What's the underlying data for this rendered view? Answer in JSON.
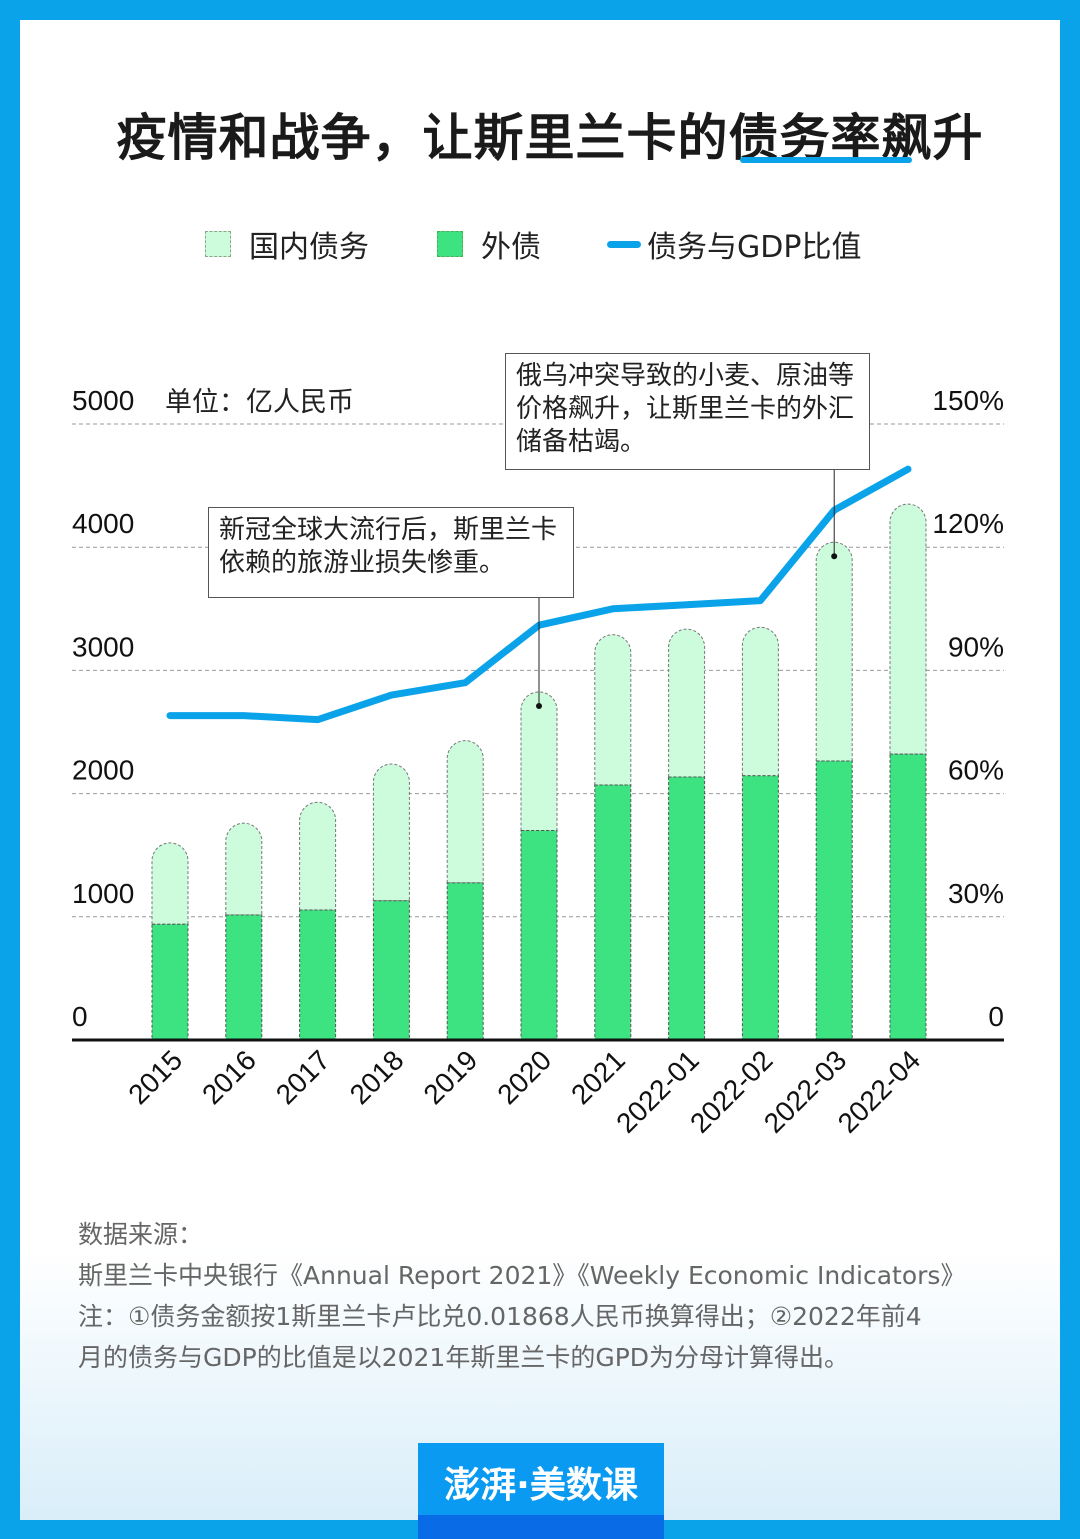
{
  "title": "疫情和战争，让斯里兰卡的债务率飙升",
  "legend": [
    {
      "label": "国内债务",
      "color": "#ccfcdc"
    },
    {
      "label": "外债",
      "color": "#3de381"
    },
    {
      "label": "债务与GDP比值",
      "color": "#0aa3ea"
    }
  ],
  "unit": "单位：亿人民币",
  "annotations": [
    "新冠全球大流行后，斯里兰卡依赖的旅游业损失惨重。",
    "俄乌冲突导致的小麦、原油等价格飙升，让斯里兰卡的外汇储备枯竭。"
  ],
  "chart_data": {
    "type": "bar",
    "stacked": true,
    "categories": [
      "2015",
      "2016",
      "2017",
      "2018",
      "2019",
      "2020",
      "2021",
      "2022-01",
      "2022-02",
      "2022-03",
      "2022-04"
    ],
    "series": [
      {
        "name": "外债",
        "type": "bar",
        "axis": "left",
        "values": [
          940,
          1015,
          1055,
          1130,
          1275,
          1700,
          2070,
          2135,
          2145,
          2265,
          2320
        ]
      },
      {
        "name": "国内债务",
        "type": "bar",
        "axis": "left",
        "values": [
          660,
          745,
          875,
          1110,
          1155,
          1125,
          1220,
          1200,
          1205,
          1775,
          2030
        ]
      },
      {
        "name": "债务与GDP比值",
        "type": "line",
        "axis": "right",
        "values": [
          79,
          79,
          78,
          84,
          87,
          101,
          105,
          106,
          107,
          129,
          139
        ]
      }
    ],
    "left_axis": {
      "ylim": [
        0,
        5000
      ],
      "ticks": [
        "0",
        "1000",
        "2000",
        "3000",
        "4000",
        "5000"
      ]
    },
    "right_axis": {
      "ylim": [
        0,
        150
      ],
      "ticks": [
        "0",
        "30%",
        "60%",
        "90%",
        "120%",
        "150%"
      ]
    },
    "grid": true,
    "legend_position": "top"
  },
  "notes": {
    "source_label": "数据来源：",
    "source": "斯里兰卡中央银行《Annual Report 2021》《Weekly Economic Indicators》",
    "note1": "注：①债务金额按1斯里兰卡卢比兑0.01868人民币换算得出；②2022年前4",
    "note2": "月的债务与GDP的比值是以2021年斯里兰卡的GPD为分母计算得出。"
  },
  "logo": "澎湃·美数课"
}
